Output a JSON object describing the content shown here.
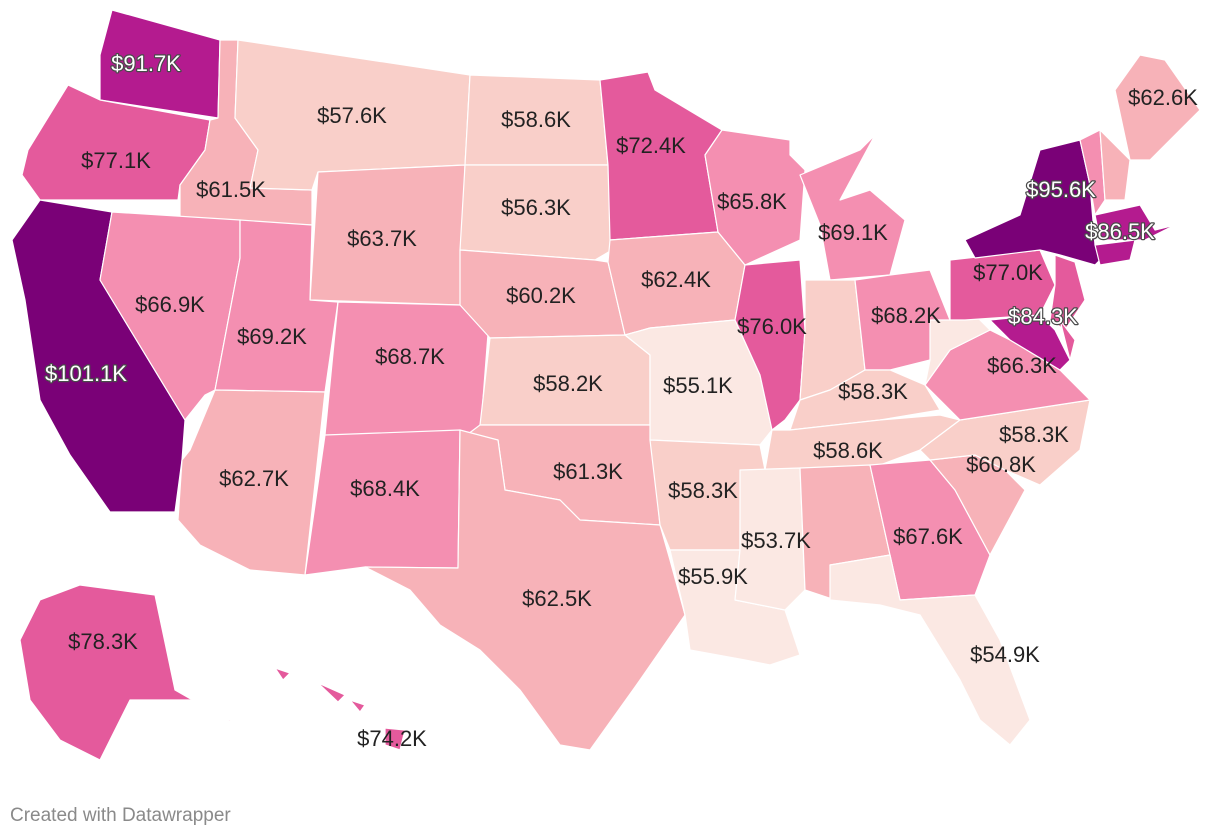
{
  "colors": {
    "background": "#ffffff",
    "border": "#ffffff",
    "scale": [
      "#fbe8e3",
      "#f9cfc9",
      "#f7b2b8",
      "#f48fb1",
      "#e45a9c",
      "#b41b8f",
      "#7a0177"
    ]
  },
  "credit": "Created with Datawrapper",
  "states": [
    {
      "code": "WA",
      "name": "Washington",
      "label": "$91.7K",
      "value": 91.7
    },
    {
      "code": "OR",
      "name": "Oregon",
      "label": "$77.1K",
      "value": 77.1
    },
    {
      "code": "CA",
      "name": "California",
      "label": "$101.1K",
      "value": 101.1
    },
    {
      "code": "ID",
      "name": "Idaho",
      "label": "$61.5K",
      "value": 61.5
    },
    {
      "code": "NV",
      "name": "Nevada",
      "label": "$66.9K",
      "value": 66.9
    },
    {
      "code": "MT",
      "name": "Montana",
      "label": "$57.6K",
      "value": 57.6
    },
    {
      "code": "WY",
      "name": "Wyoming",
      "label": "$63.7K",
      "value": 63.7
    },
    {
      "code": "UT",
      "name": "Utah",
      "label": "$69.2K",
      "value": 69.2
    },
    {
      "code": "AZ",
      "name": "Arizona",
      "label": "$62.7K",
      "value": 62.7
    },
    {
      "code": "CO",
      "name": "Colorado",
      "label": "$68.7K",
      "value": 68.7
    },
    {
      "code": "NM",
      "name": "New Mexico",
      "label": "$68.4K",
      "value": 68.4
    },
    {
      "code": "ND",
      "name": "North Dakota",
      "label": "$58.6K",
      "value": 58.6
    },
    {
      "code": "SD",
      "name": "South Dakota",
      "label": "$56.3K",
      "value": 56.3
    },
    {
      "code": "NE",
      "name": "Nebraska",
      "label": "$60.2K",
      "value": 60.2
    },
    {
      "code": "KS",
      "name": "Kansas",
      "label": "$58.2K",
      "value": 58.2
    },
    {
      "code": "OK",
      "name": "Oklahoma",
      "label": "$61.3K",
      "value": 61.3
    },
    {
      "code": "TX",
      "name": "Texas",
      "label": "$62.5K",
      "value": 62.5
    },
    {
      "code": "MN",
      "name": "Minnesota",
      "label": "$72.4K",
      "value": 72.4
    },
    {
      "code": "IA",
      "name": "Iowa",
      "label": "$62.4K",
      "value": 62.4
    },
    {
      "code": "MO",
      "name": "Missouri",
      "label": "$55.1K",
      "value": 55.1
    },
    {
      "code": "AR",
      "name": "Arkansas",
      "label": "$58.3K",
      "value": 58.3
    },
    {
      "code": "LA",
      "name": "Louisiana",
      "label": "$55.9K",
      "value": 55.9
    },
    {
      "code": "WI",
      "name": "Wisconsin",
      "label": "$65.8K",
      "value": 65.8
    },
    {
      "code": "IL",
      "name": "Illinois",
      "label": "$76.0K",
      "value": 76.0
    },
    {
      "code": "MI",
      "name": "Michigan",
      "label": "$69.1K",
      "value": 69.1
    },
    {
      "code": "IN",
      "name": "Indiana",
      "label": "",
      "value": null
    },
    {
      "code": "OH",
      "name": "Ohio",
      "label": "$68.2K",
      "value": 68.2
    },
    {
      "code": "KY",
      "name": "Kentucky",
      "label": "$58.3K",
      "value": 58.3
    },
    {
      "code": "TN",
      "name": "Tennessee",
      "label": "$58.6K",
      "value": 58.6
    },
    {
      "code": "MS",
      "name": "Mississippi",
      "label": "$53.7K",
      "value": 53.7
    },
    {
      "code": "AL",
      "name": "Alabama",
      "label": "",
      "value": null
    },
    {
      "code": "GA",
      "name": "Georgia",
      "label": "$67.6K",
      "value": 67.6
    },
    {
      "code": "FL",
      "name": "Florida",
      "label": "$54.9K",
      "value": 54.9
    },
    {
      "code": "SC",
      "name": "South Carolina",
      "label": "$60.8K",
      "value": 60.8
    },
    {
      "code": "NC",
      "name": "North Carolina",
      "label": "$58.3K",
      "value": 58.3
    },
    {
      "code": "VA",
      "name": "Virginia",
      "label": "$66.3K",
      "value": 66.3
    },
    {
      "code": "WV",
      "name": "West Virginia",
      "label": "",
      "value": null
    },
    {
      "code": "PA",
      "name": "Pennsylvania",
      "label": "$77.0K",
      "value": 77.0
    },
    {
      "code": "NY",
      "name": "New York",
      "label": "$95.6K",
      "value": 95.6
    },
    {
      "code": "MD",
      "name": "Maryland",
      "label": "$84.3K",
      "value": 84.3
    },
    {
      "code": "MA",
      "name": "Massachusetts",
      "label": "$86.5K",
      "value": 86.5
    },
    {
      "code": "ME",
      "name": "Maine",
      "label": "$62.6K",
      "value": 62.6
    },
    {
      "code": "AK",
      "name": "Alaska",
      "label": "$78.3K",
      "value": 78.3
    },
    {
      "code": "HI",
      "name": "Hawaii",
      "label": "$74.2K",
      "value": 74.2
    }
  ]
}
